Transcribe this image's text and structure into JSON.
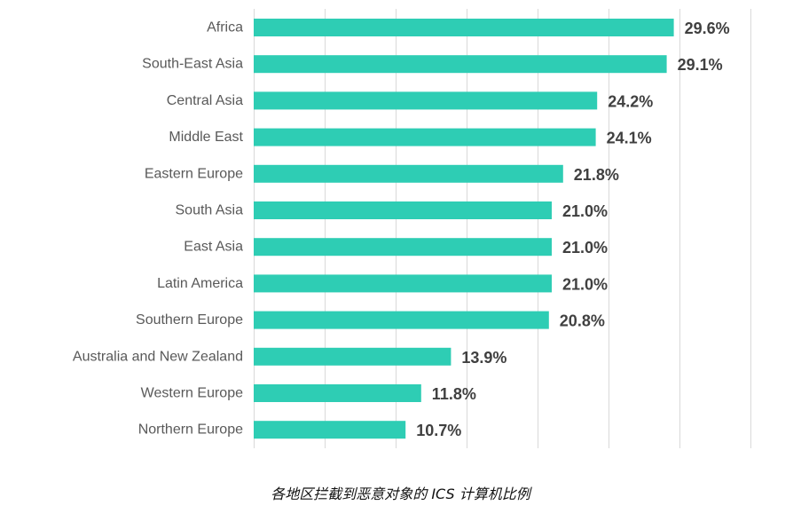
{
  "chart_data": {
    "type": "bar",
    "orientation": "horizontal",
    "categories": [
      "Africa",
      "South-East Asia",
      "Central Asia",
      "Middle East",
      "Eastern Europe",
      "South Asia",
      "East Asia",
      "Latin America",
      "Southern Europe",
      "Australia and New Zealand",
      "Western Europe",
      "Northern Europe"
    ],
    "values": [
      29.6,
      29.1,
      24.2,
      24.1,
      21.8,
      21.0,
      21.0,
      21.0,
      20.8,
      13.9,
      11.8,
      10.7
    ],
    "value_labels": [
      "29.6%",
      "29.1%",
      "24.2%",
      "24.1%",
      "21.8%",
      "21.0%",
      "21.0%",
      "21.0%",
      "20.8%",
      "13.9%",
      "11.8%",
      "10.7%"
    ],
    "xlim": [
      0,
      35
    ],
    "grid_step": 5,
    "grid": true,
    "bar_color": "#2ecdb4",
    "title": "各地区拦截到恶意对象的 ICS 计算机比例",
    "xlabel": "",
    "ylabel": ""
  }
}
